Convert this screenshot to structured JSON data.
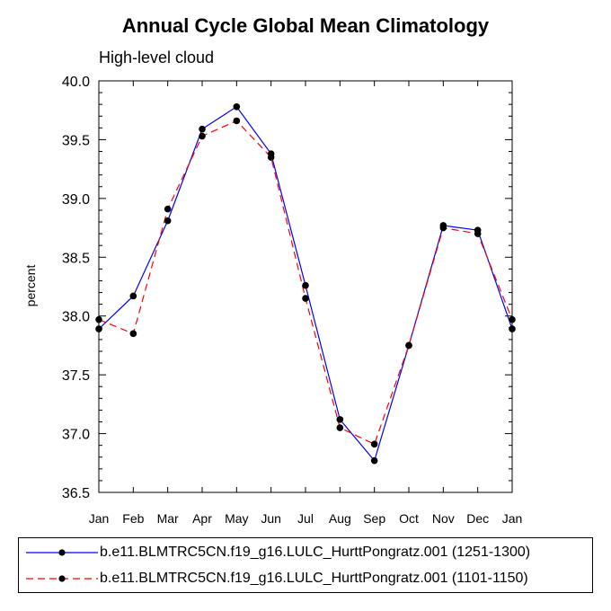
{
  "chart_data": {
    "type": "line",
    "title": "Annual Cycle Global Mean Climatology",
    "subtitle": "High-level cloud",
    "xlabel": "",
    "ylabel": "percent",
    "categories": [
      "Jan",
      "Feb",
      "Mar",
      "Apr",
      "May",
      "Jun",
      "Jul",
      "Aug",
      "Sep",
      "Oct",
      "Nov",
      "Dec",
      "Jan"
    ],
    "ylim": [
      36.5,
      40.0
    ],
    "yticks": [
      "36.5",
      "37.0",
      "37.5",
      "38.0",
      "38.5",
      "39.0",
      "39.5",
      "40.0"
    ],
    "series": [
      {
        "name": "b.e11.BLMTRC5CN.f19_g16.LULC_HurttPongratz.001 (1251-1300)",
        "color": "#0000ff",
        "dash": "solid",
        "values": [
          37.89,
          38.17,
          38.81,
          39.59,
          39.78,
          39.38,
          38.26,
          37.12,
          36.77,
          37.75,
          38.77,
          38.73,
          37.89
        ]
      },
      {
        "name": "b.e11.BLMTRC5CN.f19_g16.LULC_HurttPongratz.001 (1101-1150)",
        "color": "#ff0000",
        "dash": "dashed",
        "values": [
          37.97,
          37.85,
          38.91,
          39.53,
          39.66,
          39.35,
          38.15,
          37.05,
          36.91,
          37.75,
          38.75,
          38.7,
          37.97
        ]
      }
    ]
  }
}
